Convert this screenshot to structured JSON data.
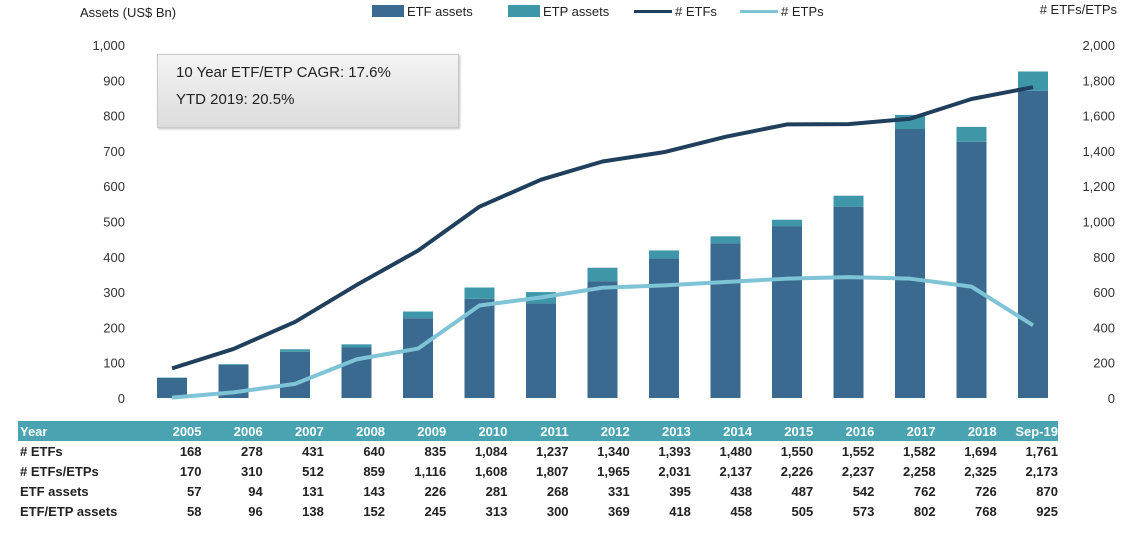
{
  "chart_data": {
    "type": "bar",
    "ylabel_left": "Assets (US$ Bn)",
    "ylabel_right": "# ETFs/ETPs",
    "categories": [
      "2005",
      "2006",
      "2007",
      "2008",
      "2009",
      "2010",
      "2011",
      "2012",
      "2013",
      "2014",
      "2015",
      "2016",
      "2017",
      "2018",
      "Sep-19"
    ],
    "ylim_left": [
      0,
      1000
    ],
    "yticks_left": [
      "0",
      "100",
      "200",
      "300",
      "400",
      "500",
      "600",
      "700",
      "800",
      "900",
      "1,000"
    ],
    "ylim_right": [
      0,
      2000
    ],
    "yticks_right": [
      "0",
      "200",
      "400",
      "600",
      "800",
      "1,000",
      "1,200",
      "1,400",
      "1,600",
      "1,800",
      "2,000"
    ],
    "legend_position": "top",
    "colors": {
      "etf_assets": "#3a6a8f",
      "etp_assets": "#3d97a8",
      "num_etfs": "#1f3f5c",
      "num_etps": "#7ec3d6",
      "table_header": "#4aa3b0"
    },
    "series": [
      {
        "name": "ETF assets",
        "kind": "bar-stack",
        "axis": "left",
        "values": [
          57,
          94,
          131,
          143,
          226,
          281,
          268,
          331,
          395,
          438,
          487,
          542,
          762,
          726,
          870
        ]
      },
      {
        "name": "ETP assets",
        "kind": "bar-stack",
        "axis": "left",
        "values": [
          1,
          2,
          7,
          9,
          19,
          32,
          32,
          38,
          23,
          20,
          18,
          31,
          40,
          42,
          55
        ]
      },
      {
        "name": "# ETFs",
        "kind": "line",
        "axis": "right",
        "values": [
          168,
          278,
          431,
          640,
          835,
          1084,
          1237,
          1340,
          1393,
          1480,
          1550,
          1552,
          1582,
          1694,
          1761
        ]
      },
      {
        "name": "# ETPs",
        "kind": "line",
        "axis": "right",
        "values": [
          2,
          32,
          80,
          219,
          280,
          524,
          570,
          625,
          638,
          657,
          676,
          685,
          676,
          631,
          412
        ]
      }
    ]
  },
  "callout": {
    "line1": "10 Year ETF/ETP CAGR: 17.6%",
    "line2": "YTD 2019: 20.5%"
  },
  "table": {
    "header": "Year",
    "years": [
      "2005",
      "2006",
      "2007",
      "2008",
      "2009",
      "2010",
      "2011",
      "2012",
      "2013",
      "2014",
      "2015",
      "2016",
      "2017",
      "2018",
      "Sep-19"
    ],
    "rows": [
      {
        "label": "# ETFs",
        "values": [
          "168",
          "278",
          "431",
          "640",
          "835",
          "1,084",
          "1,237",
          "1,340",
          "1,393",
          "1,480",
          "1,550",
          "1,552",
          "1,582",
          "1,694",
          "1,761"
        ]
      },
      {
        "label": "# ETFs/ETPs",
        "values": [
          "170",
          "310",
          "512",
          "859",
          "1,116",
          "1,608",
          "1,807",
          "1,965",
          "2,031",
          "2,137",
          "2,226",
          "2,237",
          "2,258",
          "2,325",
          "2,173"
        ]
      },
      {
        "label": "ETF assets",
        "values": [
          "57",
          "94",
          "131",
          "143",
          "226",
          "281",
          "268",
          "331",
          "395",
          "438",
          "487",
          "542",
          "762",
          "726",
          "870"
        ]
      },
      {
        "label": "ETF/ETP assets",
        "values": [
          "58",
          "96",
          "138",
          "152",
          "245",
          "313",
          "300",
          "369",
          "418",
          "458",
          "505",
          "573",
          "802",
          "768",
          "925"
        ]
      }
    ]
  }
}
